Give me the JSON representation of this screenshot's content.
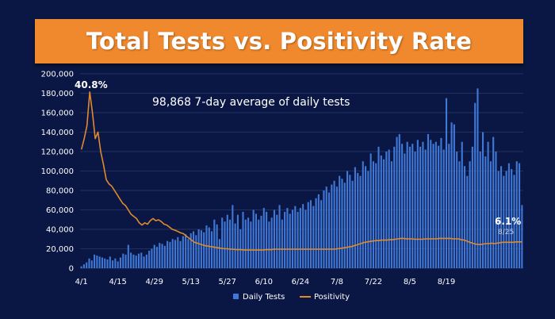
{
  "chart_data": {
    "type": "bar",
    "title": "Total Tests vs. Positivity Rate",
    "annotation": "98,868 7-day average of daily tests",
    "peak_label": "40.8%",
    "end_label": "6.1%",
    "end_date_label": "8/25",
    "x_tick_labels": [
      "4/1",
      "4/15",
      "4/29",
      "5/13",
      "5/27",
      "6/10",
      "6/24",
      "7/8",
      "7/22",
      "8/5",
      "8/19"
    ],
    "y_tick_labels": [
      "0",
      "20,000",
      "40,000",
      "60,000",
      "80,000",
      "100,000",
      "120,000",
      "140,000",
      "160,000",
      "180,000",
      "200,000"
    ],
    "ylim": [
      0,
      200000
    ],
    "grid": true,
    "legend_position": "bottom",
    "series": [
      {
        "name": "Daily Tests",
        "kind": "bar",
        "color": "#3f78d6",
        "values": [
          2000,
          4000,
          6000,
          10000,
          8000,
          14000,
          13000,
          12000,
          11000,
          10000,
          9000,
          12000,
          8000,
          10000,
          7000,
          11000,
          15000,
          14000,
          24000,
          16000,
          14000,
          13000,
          15000,
          16000,
          12000,
          14000,
          18000,
          20000,
          24000,
          22000,
          26000,
          25000,
          23000,
          28000,
          27000,
          30000,
          29000,
          32000,
          28000,
          33000,
          35000,
          30000,
          36000,
          38000,
          34000,
          40000,
          39000,
          37000,
          44000,
          42000,
          38000,
          50000,
          45000,
          30000,
          52000,
          48000,
          55000,
          50000,
          65000,
          46000,
          55000,
          40000,
          58000,
          50000,
          52000,
          48000,
          60000,
          56000,
          50000,
          54000,
          62000,
          58000,
          48000,
          52000,
          60000,
          55000,
          65000,
          50000,
          58000,
          62000,
          56000,
          60000,
          64000,
          58000,
          62000,
          66000,
          60000,
          68000,
          70000,
          64000,
          72000,
          76000,
          70000,
          80000,
          84000,
          78000,
          86000,
          90000,
          84000,
          95000,
          92000,
          88000,
          100000,
          96000,
          90000,
          104000,
          98000,
          95000,
          110000,
          105000,
          100000,
          118000,
          110000,
          108000,
          125000,
          116000,
          112000,
          120000,
          122000,
          110000,
          125000,
          135000,
          138000,
          128000,
          118000,
          130000,
          125000,
          128000,
          120000,
          132000,
          125000,
          130000,
          122000,
          138000,
          132000,
          128000,
          130000,
          126000,
          134000,
          122000,
          175000,
          128000,
          150000,
          148000,
          120000,
          110000,
          130000,
          105000,
          95000,
          110000,
          125000,
          170000,
          185000,
          120000,
          140000,
          115000,
          130000,
          110000,
          135000,
          120000,
          100000,
          105000,
          95000,
          100000,
          108000,
          102000,
          96000,
          110000,
          108000,
          65000
        ]
      },
      {
        "name": "Positivity",
        "kind": "line",
        "color": "#e08a2c",
        "values": [
          27.5,
          30.0,
          33.0,
          40.8,
          36.0,
          30.0,
          31.5,
          27.0,
          24.0,
          20.5,
          19.5,
          19.0,
          18.0,
          17.0,
          16.0,
          15.0,
          14.5,
          13.5,
          12.5,
          12.0,
          11.5,
          10.5,
          10.0,
          10.5,
          10.2,
          11.0,
          11.5,
          11.0,
          11.2,
          10.8,
          10.2,
          10.0,
          9.5,
          9.0,
          8.8,
          8.5,
          8.2,
          8.0,
          7.5,
          7.0,
          6.5,
          6.0,
          5.8,
          5.6,
          5.4,
          5.2,
          5.1,
          5.0,
          4.9,
          4.8,
          4.7,
          4.6,
          4.5,
          4.5,
          4.4,
          4.4,
          4.3,
          4.3,
          4.3,
          4.2,
          4.2,
          4.2,
          4.2,
          4.2,
          4.2,
          4.2,
          4.2,
          4.3,
          4.3,
          4.3,
          4.4,
          4.4,
          4.4,
          4.4,
          4.4,
          4.4,
          4.4,
          4.4,
          4.4,
          4.4,
          4.4,
          4.4,
          4.4,
          4.4,
          4.4,
          4.4,
          4.4,
          4.4,
          4.4,
          4.4,
          4.4,
          4.4,
          4.4,
          4.5,
          4.6,
          4.7,
          4.8,
          4.9,
          5.0,
          5.2,
          5.4,
          5.6,
          5.8,
          6.0,
          6.1,
          6.2,
          6.3,
          6.4,
          6.4,
          6.5,
          6.5,
          6.5,
          6.6,
          6.6,
          6.7,
          6.8,
          6.9,
          6.9,
          6.8,
          6.8,
          6.8,
          6.7,
          6.7,
          6.7,
          6.7,
          6.8,
          6.8,
          6.8,
          6.8,
          6.8,
          6.9,
          6.9,
          6.9,
          6.9,
          6.9,
          6.8,
          6.8,
          6.8,
          6.6,
          6.5,
          6.3,
          6.0,
          5.8,
          5.6,
          5.5,
          5.5,
          5.6,
          5.7,
          5.7,
          5.8,
          5.7,
          5.8,
          5.9,
          6.0,
          6.0,
          6.0,
          6.0,
          6.0,
          6.1,
          6.1,
          6.1
        ]
      }
    ],
    "legend": [
      {
        "label": "Daily Tests",
        "color": "#3f78d6",
        "marker": "square"
      },
      {
        "label": "Positivity",
        "color": "#e08a2c",
        "marker": "line"
      }
    ]
  }
}
